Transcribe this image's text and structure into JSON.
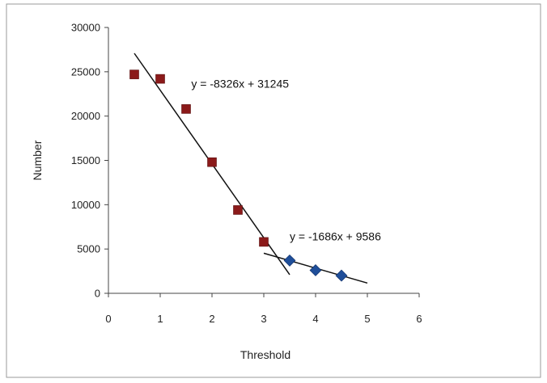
{
  "chart_data": {
    "type": "scatter",
    "title": "",
    "xlabel": "Threshold",
    "ylabel": "Number",
    "xlim": [
      0,
      6
    ],
    "ylim": [
      0,
      30000
    ],
    "x_ticks": [
      "0",
      "1",
      "2",
      "3",
      "4",
      "5",
      "6"
    ],
    "y_ticks": [
      "0",
      "5000",
      "10000",
      "15000",
      "20000",
      "25000",
      "30000"
    ],
    "grid": false,
    "legend": false,
    "series": [
      {
        "marker": "square",
        "color": "#8b1a1a",
        "points": [
          {
            "x": 0.5,
            "y": 24700
          },
          {
            "x": 1.0,
            "y": 24200
          },
          {
            "x": 1.5,
            "y": 20800
          },
          {
            "x": 2.0,
            "y": 14800
          },
          {
            "x": 2.5,
            "y": 9400
          },
          {
            "x": 3.0,
            "y": 5800
          }
        ]
      },
      {
        "marker": "diamond",
        "color": "#1f4e99",
        "points": [
          {
            "x": 3.5,
            "y": 3700
          },
          {
            "x": 4.0,
            "y": 2600
          },
          {
            "x": 4.5,
            "y": 2000
          }
        ]
      }
    ],
    "trendlines": [
      {
        "slope": -8326,
        "intercept": 31245,
        "x_range": [
          0.5,
          3.5
        ],
        "equation": "y = -8326x + 31245"
      },
      {
        "slope": -1686,
        "intercept": 9586,
        "x_range": [
          3.0,
          5.0
        ],
        "equation": "y = -1686x + 9586"
      }
    ],
    "annotations": [
      {
        "text": "y = -8326x + 31245",
        "x": 1.6,
        "y": 23200
      },
      {
        "text": "y = -1686x + 9586",
        "x": 3.5,
        "y": 5950
      }
    ]
  }
}
